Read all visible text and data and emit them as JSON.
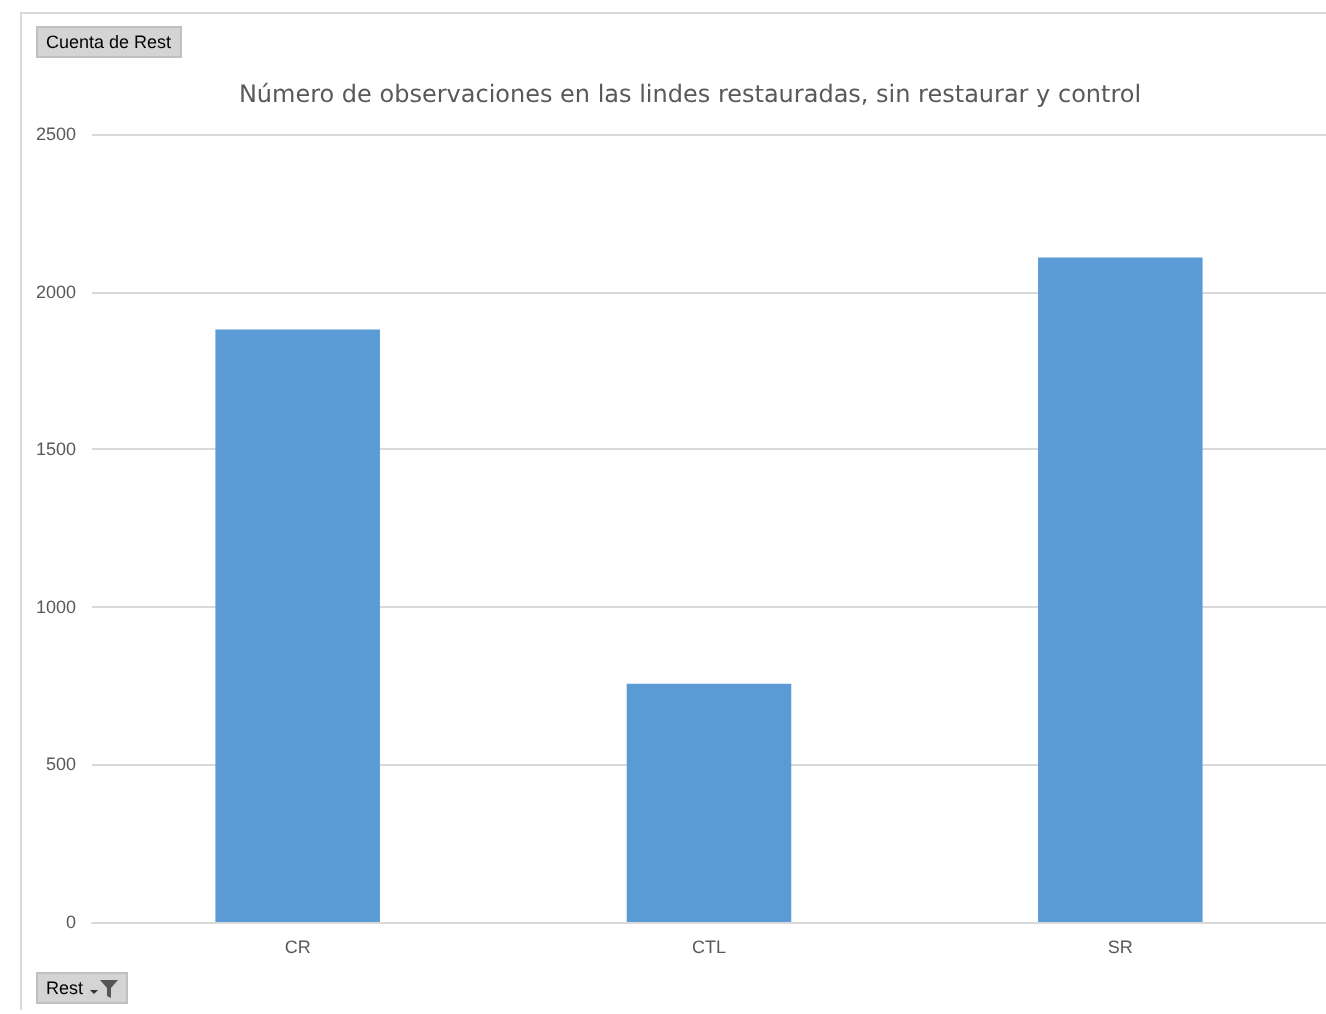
{
  "chart_data": {
    "type": "bar",
    "title": "Número de observaciones en las lindes restauradas, sin restaurar y control",
    "categories": [
      "CR",
      "CTL",
      "SR"
    ],
    "values": [
      1880,
      756,
      2108
    ],
    "color": "#5b9bd5",
    "ylim": [
      0,
      2500
    ],
    "yticks": [
      0,
      500,
      1000,
      1500,
      2000,
      2500
    ],
    "grid": "y",
    "annotations": [
      "Cuenta de Rest",
      "Rest"
    ]
  }
}
